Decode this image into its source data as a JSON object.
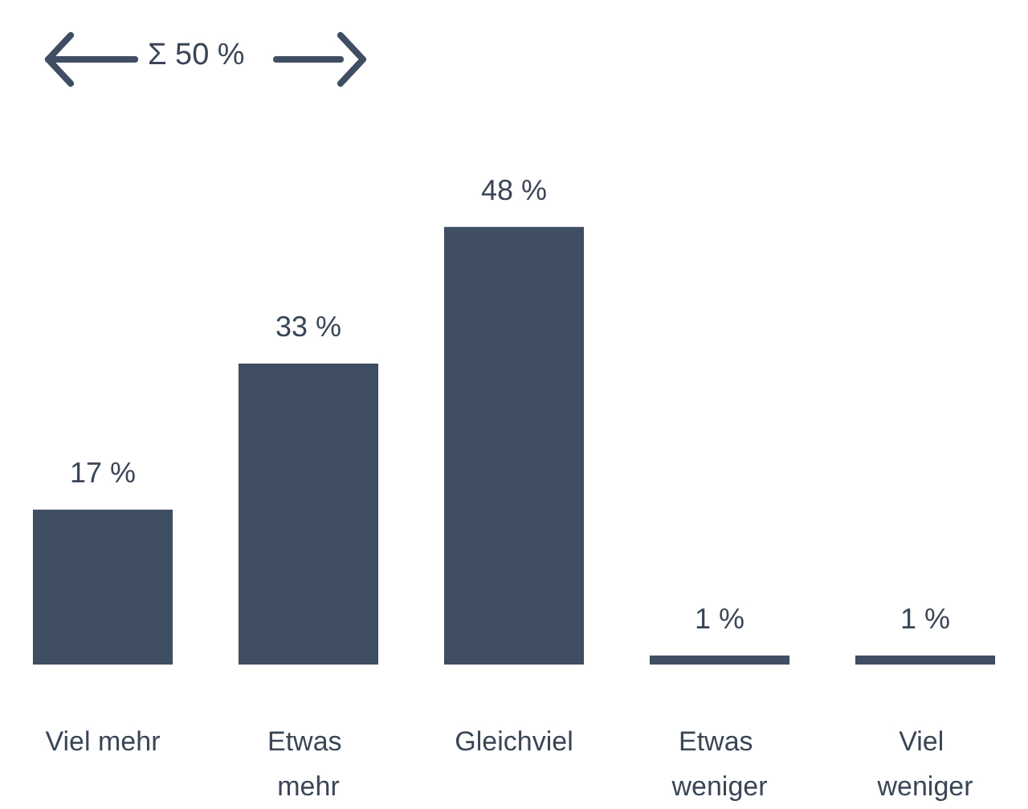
{
  "chart_data": {
    "type": "bar",
    "categories": [
      "Viel mehr",
      "Etwas mehr",
      "Gleichviel",
      "Etwas weniger",
      "Viel weniger"
    ],
    "values": [
      17,
      33,
      48,
      1,
      1
    ],
    "color": "#404e63",
    "value_labels": [
      "17 %",
      "33 %",
      "48 %",
      "1 %",
      "1 %"
    ],
    "annotations": [
      "Σ 50 %"
    ]
  }
}
